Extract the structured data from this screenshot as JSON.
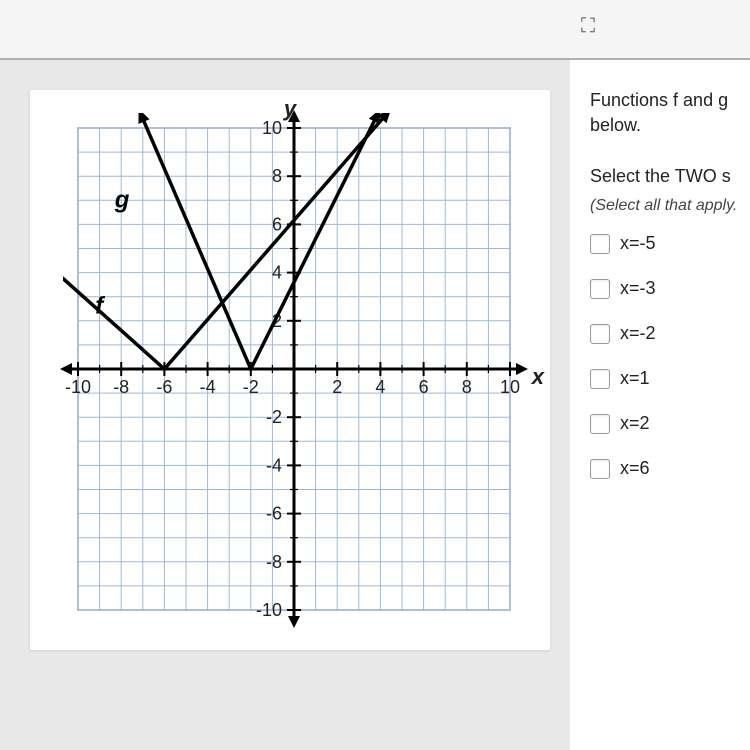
{
  "topbar": {
    "expand_icon": "⛶"
  },
  "graph": {
    "y_axis_label": "y",
    "x_axis_label": "x",
    "xlim": [
      -10,
      10
    ],
    "ylim": [
      -10,
      10
    ],
    "xtick_step": 2,
    "ytick_step": 2,
    "sub_tick_count": 1,
    "grid_color": "#9fb8d4",
    "grid_border_color": "#7a94b0",
    "axis_color": "#000000",
    "background_color": "#ffffff",
    "f_label": "f",
    "g_label": "g",
    "f_points": [
      [
        -12,
        4.8
      ],
      [
        -6,
        0
      ],
      [
        4.5,
        10.8
      ]
    ],
    "g_points": [
      [
        -7.2,
        10.8
      ],
      [
        -2,
        0
      ],
      [
        4,
        10.8
      ]
    ]
  },
  "question": {
    "line1": "Functions f and g",
    "line2": "below.",
    "line3": "Select the TWO s",
    "hint": "(Select all that apply.",
    "options": [
      {
        "label": "x=-5"
      },
      {
        "label": "x=-3"
      },
      {
        "label": "x=-2"
      },
      {
        "label": "x=1"
      },
      {
        "label": "x=2"
      },
      {
        "label": "x=6"
      }
    ]
  }
}
